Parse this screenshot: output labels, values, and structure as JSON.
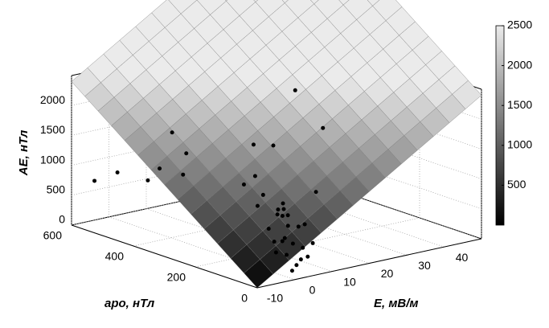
{
  "chart_data": {
    "type": "scatter3d",
    "xlabel": "E, мВ/м",
    "ylabel": "apo, нТл",
    "zlabel": "AE, нТл",
    "xlim": [
      -10,
      50
    ],
    "xticks": [
      -10,
      0,
      10,
      20,
      30,
      40
    ],
    "ylim": [
      0,
      600
    ],
    "yticks": [
      0,
      200,
      400,
      600
    ],
    "zlim": [
      0,
      2500
    ],
    "zticks": [
      0,
      500,
      1000,
      1500,
      2000
    ],
    "grid": true,
    "surface": {
      "x": [
        -10,
        50
      ],
      "y": [
        0,
        600
      ],
      "z": [
        [
          0,
          2400
        ],
        [
          2400,
          4800
        ]
      ]
    },
    "colorbar": {
      "lim": [
        0,
        2500
      ],
      "ticks": [
        500,
        1000,
        1500,
        2000,
        2500
      ]
    },
    "points": {
      "color": "#000000",
      "x": [
        2,
        4,
        5,
        6,
        3,
        7,
        8,
        5,
        4,
        6,
        3,
        9,
        10,
        2,
        7,
        1,
        5,
        8,
        6,
        4,
        3,
        11,
        12,
        0,
        6,
        9,
        -5,
        -3,
        0,
        -2,
        15,
        20,
        25,
        -6,
        2,
        18,
        -8,
        14
      ],
      "y": [
        50,
        80,
        100,
        60,
        120,
        90,
        150,
        40,
        70,
        110,
        30,
        130,
        160,
        90,
        140,
        20,
        180,
        70,
        30,
        150,
        200,
        100,
        180,
        60,
        200,
        50,
        300,
        400,
        350,
        450,
        250,
        150,
        300,
        500,
        420,
        350,
        550,
        100
      ],
      "z": [
        300,
        500,
        400,
        700,
        600,
        350,
        800,
        200,
        900,
        1000,
        150,
        550,
        650,
        450,
        750,
        100,
        850,
        300,
        250,
        1100,
        1200,
        600,
        700,
        350,
        1300,
        400,
        1300,
        1200,
        1500,
        900,
        1600,
        2000,
        2300,
        1000,
        1700,
        1400,
        800,
        1100
      ]
    }
  }
}
